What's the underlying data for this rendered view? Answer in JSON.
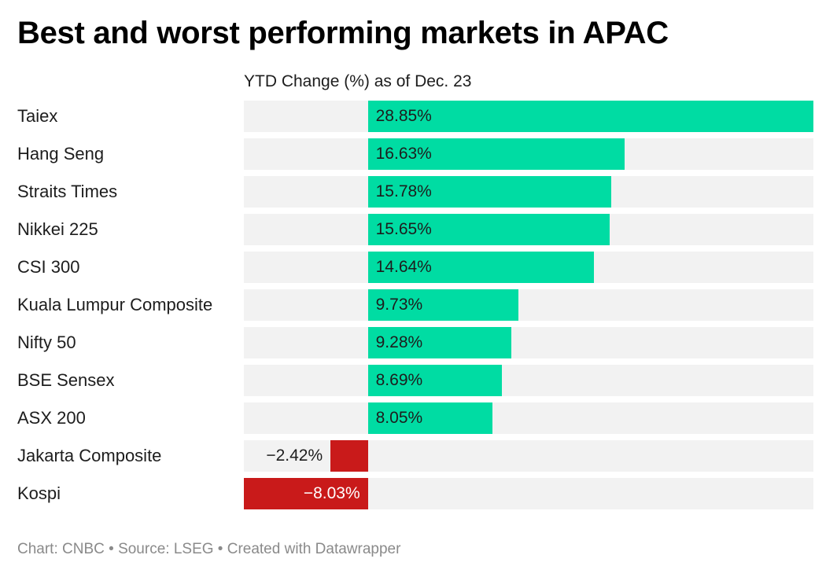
{
  "header": {
    "title": "Best and worst performing markets in APAC",
    "column_header": "YTD Change (%) as of Dec. 23"
  },
  "footer": {
    "text": "Chart: CNBC • Source: LSEG • Created with Datawrapper"
  },
  "colors": {
    "positive": "#00dca3",
    "negative": "#c91a1a",
    "track": "#f2f2f2"
  },
  "chart_data": {
    "type": "bar",
    "orientation": "horizontal",
    "title": "Best and worst performing markets in APAC",
    "xlabel": "YTD Change (%) as of Dec. 23",
    "ylabel": "",
    "xlim": [
      -8.03,
      28.85
    ],
    "categories": [
      "Taiex",
      "Hang Seng",
      "Straits Times",
      "Nikkei 225",
      "CSI 300",
      "Kuala Lumpur Composite",
      "Nifty 50",
      "BSE Sensex",
      "ASX 200",
      "Jakarta Composite",
      "Kospi"
    ],
    "values": [
      28.85,
      16.63,
      15.78,
      15.65,
      14.64,
      9.73,
      9.28,
      8.69,
      8.05,
      -2.42,
      -8.03
    ],
    "labels": [
      "28.85%",
      "16.63%",
      "15.78%",
      "15.65%",
      "14.64%",
      "9.73%",
      "9.28%",
      "8.69%",
      "8.05%",
      "−2.42%",
      "−8.03%"
    ]
  }
}
